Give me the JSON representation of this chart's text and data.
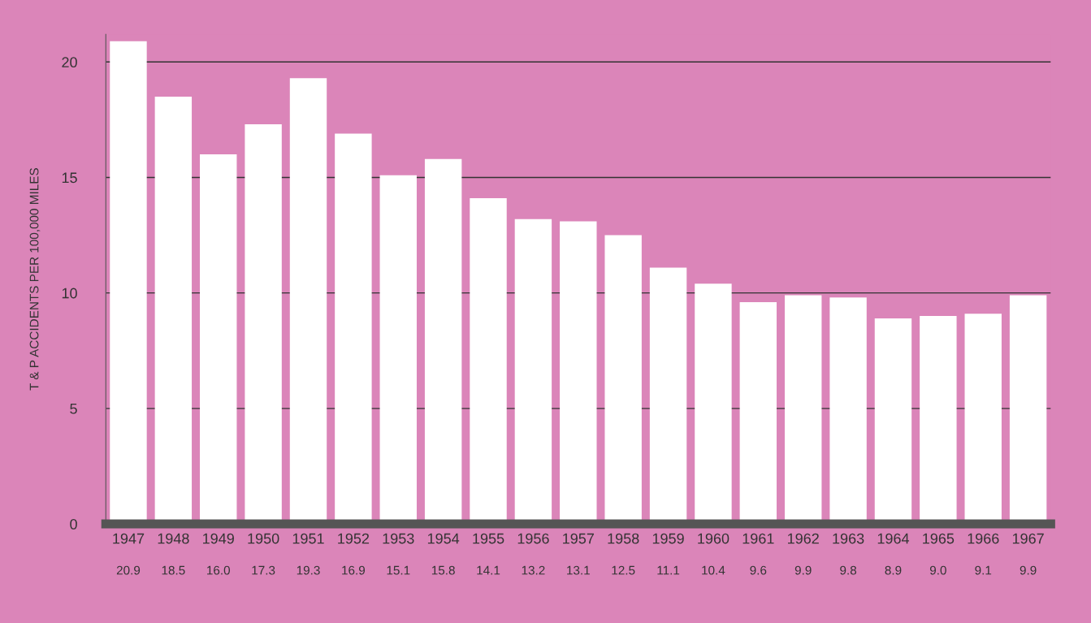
{
  "chart_data": {
    "type": "bar",
    "ylabel": "T & P ACCIDENTS PER 100,000 MILES",
    "categories": [
      "1947",
      "1948",
      "1949",
      "1950",
      "1951",
      "1952",
      "1953",
      "1954",
      "1955",
      "1956",
      "1957",
      "1958",
      "1959",
      "1960",
      "1961",
      "1962",
      "1963",
      "1964",
      "1965",
      "1966",
      "1967"
    ],
    "values": [
      20.9,
      18.5,
      16.0,
      17.3,
      19.3,
      16.9,
      15.1,
      15.8,
      14.1,
      13.2,
      13.1,
      12.5,
      11.1,
      10.4,
      9.6,
      9.9,
      9.8,
      8.9,
      9.0,
      9.1,
      9.9
    ],
    "value_labels": [
      "20.9",
      "18.5",
      "16.0",
      "17.3",
      "19.3",
      "16.9",
      "15.1",
      "15.8",
      "14.1",
      "13.2",
      "13.1",
      "12.5",
      "11.1",
      "10.4",
      "9.6",
      "9.9",
      "9.8",
      "8.9",
      "9.0",
      "9.1",
      "9.9"
    ],
    "color": "#ffffff",
    "ylim": [
      0,
      21.2
    ],
    "yticks": [
      0,
      5,
      10,
      15,
      20
    ],
    "grid": "y",
    "legend": false
  }
}
